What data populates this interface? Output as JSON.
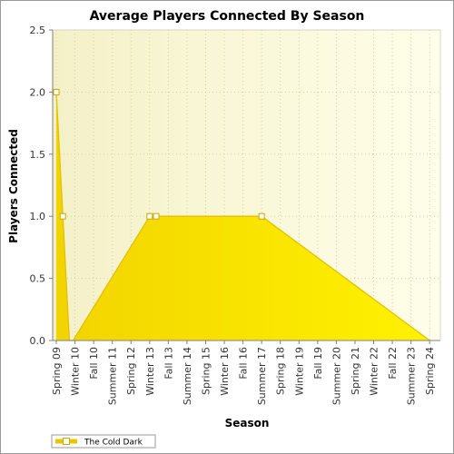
{
  "chart_data": {
    "type": "area",
    "title": "Average Players Connected By Season",
    "xlabel": "Season",
    "ylabel": "Players Connected",
    "ylim": [
      0,
      2.5
    ],
    "yticks": [
      "0.0",
      "0.5",
      "1.0",
      "1.5",
      "2.0",
      "2.5"
    ],
    "categories": [
      "Spring 09",
      "Winter 10",
      "Fall 10",
      "Summer 11",
      "Spring 12",
      "Winter 13",
      "Fall 13",
      "Summer 14",
      "Spring 15",
      "Winter 16",
      "Fall 16",
      "Summer 17",
      "Spring 18",
      "Winter 19",
      "Fall 19",
      "Summer 20",
      "Spring 21",
      "Winter 22",
      "Fall 22",
      "Summer 23",
      "Spring 24"
    ],
    "series": [
      {
        "name": "The Cold Dark",
        "color": "#ffee00",
        "points": [
          {
            "x": 0.0,
            "y": 2.0,
            "marker": true
          },
          {
            "x": 0.35,
            "y": 1.0,
            "marker": true
          },
          {
            "x": 0.7,
            "y": 0.0,
            "marker": false
          },
          {
            "x": 0.9,
            "y": 0.0,
            "marker": false
          },
          {
            "x": 5.0,
            "y": 1.0,
            "marker": true
          },
          {
            "x": 5.35,
            "y": 1.0,
            "marker": true
          },
          {
            "x": 11.0,
            "y": 1.0,
            "marker": true
          },
          {
            "x": 20.0,
            "y": 0.0,
            "marker": false
          }
        ]
      }
    ],
    "grid": true,
    "legend_position": "bottom-left"
  }
}
